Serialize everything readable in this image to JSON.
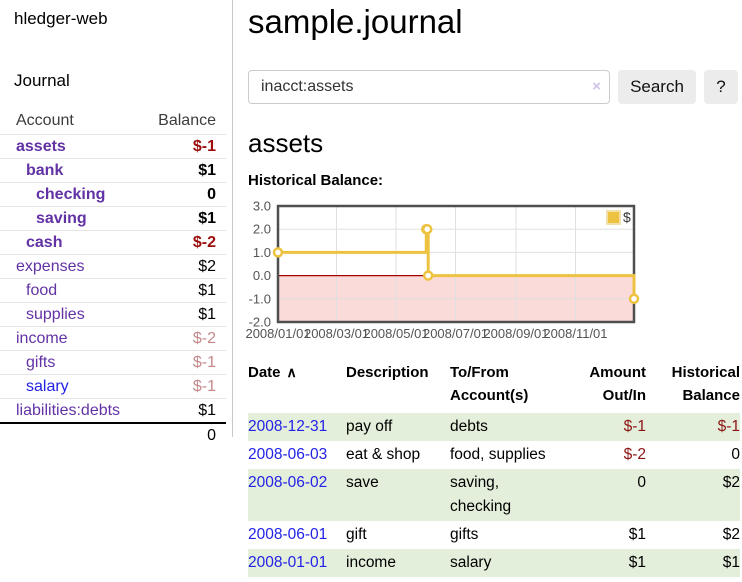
{
  "colors": {
    "purple": "#6232a5",
    "blue": "#2222e6",
    "neg_strong": "#9c0d0d",
    "neg_soft": "#c38989",
    "neg_table": "#8b1414",
    "gold": "#edc240",
    "gold_light": "#f2e0ab",
    "pink_region": "#fbdada",
    "zero_line": "#a40000",
    "grid": "#e0e0e0",
    "chart_border": "#4f4f4f",
    "axis_text": "#545454",
    "row_green": "#e4efdb"
  },
  "sidebar": {
    "app_title": "hledger-web",
    "nav": {
      "journal_label": "Journal"
    },
    "accounts_table": {
      "headers": [
        "Account",
        "Balance"
      ],
      "rows": [
        {
          "name": "assets",
          "depth": 0,
          "bold": true,
          "name_style": "purple",
          "balance": "$-1",
          "balance_style": "neg-strong"
        },
        {
          "name": "bank",
          "depth": 1,
          "bold": true,
          "name_style": "purple",
          "balance": "$1",
          "balance_style": "normal"
        },
        {
          "name": "checking",
          "depth": 2,
          "bold": true,
          "name_style": "purple",
          "balance": "0",
          "balance_style": "normal"
        },
        {
          "name": "saving",
          "depth": 2,
          "bold": true,
          "name_style": "purple",
          "balance": "$1",
          "balance_style": "normal"
        },
        {
          "name": "cash",
          "depth": 1,
          "bold": true,
          "name_style": "purple",
          "balance": "$-2",
          "balance_style": "neg-strong"
        },
        {
          "name": "expenses",
          "depth": 0,
          "bold": false,
          "name_style": "purple",
          "balance": "$2",
          "balance_style": "normal"
        },
        {
          "name": "food",
          "depth": 1,
          "bold": false,
          "name_style": "purple",
          "balance": "$1",
          "balance_style": "normal"
        },
        {
          "name": "supplies",
          "depth": 1,
          "bold": false,
          "name_style": "purple",
          "balance": "$1",
          "balance_style": "normal"
        },
        {
          "name": "income",
          "depth": 0,
          "bold": false,
          "name_style": "purple",
          "balance": "$-2",
          "balance_style": "neg-soft"
        },
        {
          "name": "gifts",
          "depth": 1,
          "bold": false,
          "name_style": "purple",
          "balance": "$-1",
          "balance_style": "neg-soft"
        },
        {
          "name": "salary",
          "depth": 1,
          "bold": false,
          "name_style": "blue",
          "balance": "$-1",
          "balance_style": "neg-soft"
        },
        {
          "name": "liabilities:debts",
          "depth": 0,
          "bold": false,
          "name_style": "purple",
          "balance": "$1",
          "balance_style": "normal"
        }
      ],
      "total": "0"
    }
  },
  "main": {
    "title": "sample.journal",
    "search": {
      "value": "inacct:assets",
      "clear_icon": "×",
      "search_button": "Search",
      "help_button": "?"
    },
    "section_title": "assets",
    "chart_label": "Historical Balance:"
  },
  "chart_data": {
    "type": "line",
    "step": true,
    "series": [
      {
        "name": "$",
        "points": [
          [
            "2008-01-01",
            1
          ],
          [
            "2008-06-01",
            2
          ],
          [
            "2008-06-02",
            2
          ],
          [
            "2008-06-03",
            0
          ],
          [
            "2008-12-31",
            -1
          ]
        ]
      }
    ],
    "x_range": [
      "2008-01-01",
      "2008-12-31"
    ],
    "ylim": [
      -2,
      3
    ],
    "yticks": [
      3,
      2,
      1,
      0,
      -1,
      -2
    ],
    "xticks": [
      "2008/01/01",
      "2008/03/01",
      "2008/05/01",
      "2008/07/01",
      "2008/09/01",
      "2008/11/01"
    ],
    "legend": {
      "label": "$",
      "position": "top-right"
    },
    "negative_region_shaded": true,
    "grid": true,
    "xlabel": "",
    "ylabel": ""
  },
  "register_table": {
    "sort_icon": "∧",
    "headers": [
      {
        "line1": "Date",
        "line2": "",
        "align": "left",
        "sorted_asc": true
      },
      {
        "line1": "Description",
        "line2": "",
        "align": "left"
      },
      {
        "line1": "To/From",
        "line2": "Account(s)",
        "align": "left"
      },
      {
        "line1": "Amount",
        "line2": "Out/In",
        "align": "right"
      },
      {
        "line1": "Historical",
        "line2": "Balance",
        "align": "right"
      }
    ],
    "rows": [
      {
        "date": "2008-12-31",
        "description": "pay off",
        "accounts": [
          "debts"
        ],
        "amount": "$-1",
        "amount_neg": true,
        "balance": "$-1",
        "balance_neg": true,
        "shaded": true
      },
      {
        "date": "2008-06-03",
        "description": "eat & shop",
        "accounts": [
          "food, supplies"
        ],
        "amount": "$-2",
        "amount_neg": true,
        "balance": "0",
        "balance_neg": false,
        "shaded": false
      },
      {
        "date": "2008-06-02",
        "description": "save",
        "accounts": [
          "saving,",
          "checking"
        ],
        "amount": "0",
        "amount_neg": false,
        "balance": "$2",
        "balance_neg": false,
        "shaded": true
      },
      {
        "date": "2008-06-01",
        "description": "gift",
        "accounts": [
          "gifts"
        ],
        "amount": "$1",
        "amount_neg": false,
        "balance": "$2",
        "balance_neg": false,
        "shaded": false
      },
      {
        "date": "2008-01-01",
        "description": "income",
        "accounts": [
          "salary"
        ],
        "amount": "$1",
        "amount_neg": false,
        "balance": "$1",
        "balance_neg": false,
        "shaded": true
      }
    ]
  }
}
